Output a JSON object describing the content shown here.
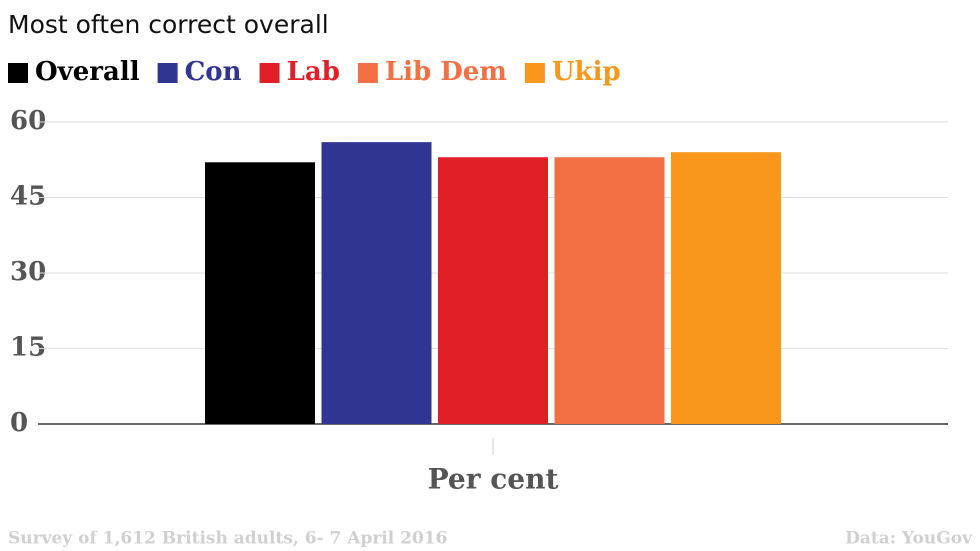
{
  "chart_data": {
    "type": "bar",
    "title": "Most often correct overall",
    "categories": [
      "Per cent"
    ],
    "series": [
      {
        "name": "Overall",
        "color": "#000000",
        "values": [
          52
        ]
      },
      {
        "name": "Con",
        "color": "#303591",
        "values": [
          56
        ]
      },
      {
        "name": "Lab",
        "color": "#e01f27",
        "values": [
          53
        ]
      },
      {
        "name": "Lib Dem",
        "color": "#f37044",
        "values": [
          53
        ]
      },
      {
        "name": "Ukip",
        "color": "#f7981d",
        "values": [
          54
        ]
      }
    ],
    "ylim": [
      0,
      60
    ],
    "yticks": [
      0,
      15,
      30,
      45,
      60
    ],
    "grid": true,
    "note": "Survey of 1,612 British adults, 6- 7 April 2016",
    "source": "Data: YouGov"
  }
}
